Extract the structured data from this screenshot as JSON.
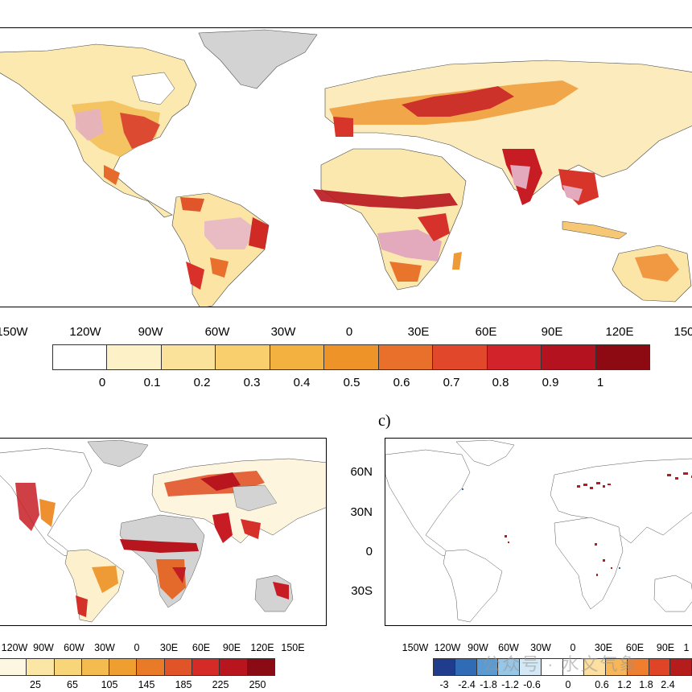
{
  "panel_a": {
    "lon_labels": [
      "150W",
      "120W",
      "90W",
      "60W",
      "30W",
      "0",
      "30E",
      "60E",
      "90E",
      "120E",
      "150"
    ],
    "colorbar": {
      "colors": [
        "#ffffff",
        "#fdf1c8",
        "#fbe29b",
        "#f8cf6c",
        "#f3b23f",
        "#ee9328",
        "#e8702a",
        "#e1472b",
        "#d2222a",
        "#b5121f",
        "#8e0a12"
      ],
      "labels": [
        "0",
        "0.1",
        "0.2",
        "0.3",
        "0.4",
        "0.5",
        "0.6",
        "0.7",
        "0.8",
        "0.9",
        "1"
      ]
    }
  },
  "panel_b": {
    "lon_labels": [
      "120W",
      "90W",
      "60W",
      "30W",
      "0",
      "30E",
      "60E",
      "90E",
      "120E",
      "150E"
    ],
    "colorbar": {
      "colors": [
        "#fdf6e0",
        "#fbe6a6",
        "#f9d57a",
        "#f4bc4f",
        "#ef9e30",
        "#e97a28",
        "#e15428",
        "#d52b26",
        "#b8151f",
        "#8a0b13"
      ],
      "labels": [
        "25",
        "65",
        "105",
        "145",
        "185",
        "225",
        "250"
      ]
    }
  },
  "panel_c": {
    "letter": "c)",
    "lat_labels": [
      "60N",
      "30N",
      "0",
      "30S"
    ],
    "lon_labels": [
      "150W",
      "120W",
      "90W",
      "60W",
      "30W",
      "0",
      "30E",
      "60E",
      "90E",
      "1"
    ],
    "colorbar": {
      "colors": [
        "#1f3d8c",
        "#2f6cb5",
        "#5a9bd3",
        "#98c6e6",
        "#d3e8f4",
        "#ffffff",
        "#ffffff",
        "#fde0a0",
        "#f7b658",
        "#ef7f2f",
        "#df4427",
        "#b51d1d"
      ],
      "labels": [
        "-3",
        "-2.4",
        "-1.8",
        "-1.2",
        "-0.6",
        "0",
        "0.6",
        "1.2",
        "1.8",
        "2.4"
      ]
    }
  },
  "watermark": "公众号 · 水文气象"
}
